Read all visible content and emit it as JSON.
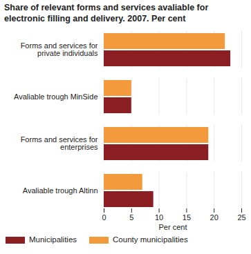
{
  "chart_data": {
    "type": "bar",
    "title": "Share of relevant forms and services avaliable for electronic filling and delivery. 2007. Per cent",
    "orientation": "horizontal",
    "categories": [
      "Forms and services for private individuals",
      "Avaliable trough MinSide",
      "Forms and services for enterprises",
      "Avaliable trough Altinn"
    ],
    "series": [
      {
        "name": "Municipalities",
        "color": "#8b1e22",
        "values": [
          23,
          5,
          19,
          9
        ]
      },
      {
        "name": "County municipalities",
        "color": "#f39a3c",
        "values": [
          22,
          5,
          19,
          7
        ]
      }
    ],
    "x_label": "Per cent",
    "xlim": [
      0,
      25
    ],
    "xticks": [
      0,
      5,
      10,
      15,
      20,
      25
    ],
    "grid": true,
    "legend": "bottom"
  }
}
